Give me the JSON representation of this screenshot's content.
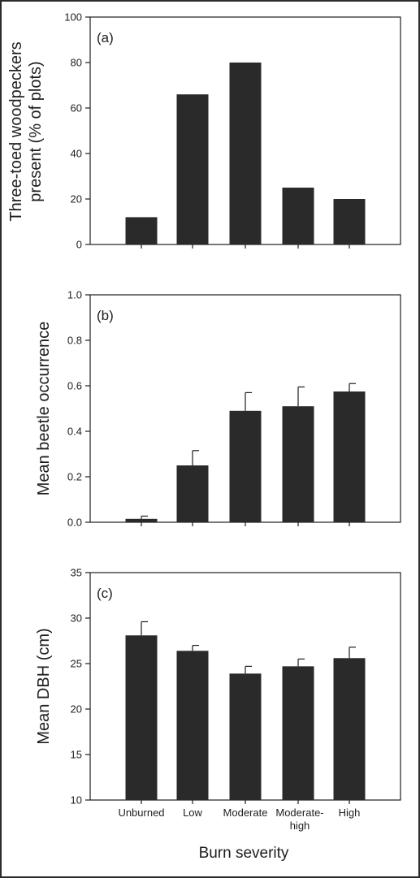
{
  "x_axis": {
    "categories": [
      "Unburned",
      "Low",
      "Moderate",
      "Moderate-\nhigh",
      "High"
    ],
    "label": "Burn severity"
  },
  "colors": {
    "bar": "#2a2a2a",
    "axis": "#1e1e1e"
  },
  "chart_data": [
    {
      "type": "bar",
      "panel_label": "(a)",
      "ylabel": [
        "Three-toed woodpeckers",
        "present (% of plots)"
      ],
      "ylim": [
        0,
        100
      ],
      "yticks": [
        0,
        20,
        40,
        60,
        80,
        100
      ],
      "ytick_labels": [
        "0",
        "20",
        "40",
        "60",
        "80",
        "100"
      ],
      "categories": [
        "Unburned",
        "Low",
        "Moderate",
        "Moderate-high",
        "High"
      ],
      "values": [
        12,
        66,
        80,
        25,
        20
      ],
      "errors": null,
      "grid": false,
      "legend": "none"
    },
    {
      "type": "bar",
      "panel_label": "(b)",
      "ylabel": [
        "Mean beetle occurrence"
      ],
      "ylim": [
        0,
        1
      ],
      "yticks": [
        0,
        0.2,
        0.4,
        0.6,
        0.8,
        1.0
      ],
      "ytick_labels": [
        "0.0",
        "0.2",
        "0.4",
        "0.6",
        "0.8",
        "1.0"
      ],
      "categories": [
        "Unburned",
        "Low",
        "Moderate",
        "Moderate-high",
        "High"
      ],
      "values": [
        0.015,
        0.25,
        0.49,
        0.51,
        0.575
      ],
      "errors": [
        0.012,
        0.065,
        0.08,
        0.085,
        0.035
      ],
      "grid": false,
      "legend": "none"
    },
    {
      "type": "bar",
      "panel_label": "(c)",
      "ylabel": [
        "Mean DBH (cm)"
      ],
      "ylim": [
        10,
        35
      ],
      "yticks": [
        10,
        15,
        20,
        25,
        30,
        35
      ],
      "ytick_labels": [
        "10",
        "15",
        "20",
        "25",
        "30",
        "35"
      ],
      "categories": [
        "Unburned",
        "Low",
        "Moderate",
        "Moderate-high",
        "High"
      ],
      "values": [
        28.1,
        26.4,
        23.9,
        24.7,
        25.6
      ],
      "errors": [
        1.5,
        0.6,
        0.8,
        0.8,
        1.2
      ],
      "grid": false,
      "legend": "none"
    }
  ]
}
